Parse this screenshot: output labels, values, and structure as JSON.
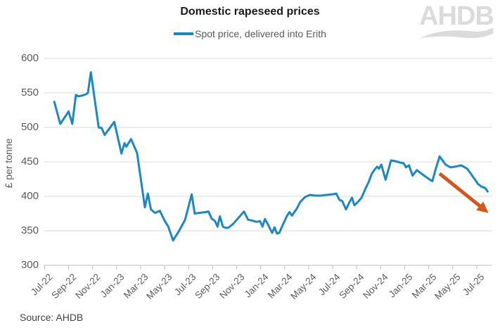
{
  "header": {
    "title": "Domestic rapeseed prices",
    "legend_label": "Spot price, delivered into Erith",
    "logo_text": "AHDB"
  },
  "footer": {
    "source": "Source: AHDB"
  },
  "colors": {
    "line": "#1B87C5",
    "arrow": "#D2571C",
    "gridline": "#D9D9D9",
    "axis": "#BFBFBF",
    "tick_text": "#595959",
    "logo": "#DBDBDB"
  },
  "chart_data": {
    "type": "line",
    "title": "Domestic rapeseed prices",
    "ylabel": "£ per tonne",
    "xlabel": "",
    "ylim": [
      300,
      600
    ],
    "y_ticks": [
      300,
      350,
      400,
      450,
      500,
      550,
      600
    ],
    "grid": "horizontal",
    "legend_position": "top-center",
    "x_axis": {
      "unit": "months after Jul-2022",
      "tick_months": [
        0,
        2,
        4,
        6,
        8,
        10,
        12,
        14,
        16,
        18,
        20,
        22,
        24,
        26,
        28,
        30,
        32,
        34,
        36
      ],
      "tick_labels": [
        "Jul-22",
        "Sep-22",
        "Nov-22",
        "Jan-23",
        "Mar-23",
        "May-23",
        "Jul-23",
        "Sep-23",
        "Nov-23",
        "Jan-24",
        "Mar-24",
        "May-24",
        "Jul-24",
        "Sep-24",
        "Nov-24",
        "Jan-25",
        "Mar-25",
        "May-25",
        "Jul-25"
      ]
    },
    "series": [
      {
        "name": "Spot price, delivered into Erith",
        "points": [
          [
            0.8,
            537
          ],
          [
            1.3,
            505
          ],
          [
            2.0,
            523
          ],
          [
            2.3,
            505
          ],
          [
            2.6,
            547
          ],
          [
            2.8,
            545
          ],
          [
            3.1,
            546
          ],
          [
            3.45,
            548
          ],
          [
            3.6,
            550
          ],
          [
            3.85,
            580
          ],
          [
            4.5,
            500
          ],
          [
            4.75,
            499
          ],
          [
            5.0,
            489
          ],
          [
            5.8,
            508
          ],
          [
            6.4,
            462
          ],
          [
            6.65,
            477
          ],
          [
            6.8,
            472
          ],
          [
            7.2,
            483
          ],
          [
            7.7,
            463
          ],
          [
            8.35,
            384
          ],
          [
            8.6,
            404
          ],
          [
            8.85,
            381
          ],
          [
            9.2,
            376
          ],
          [
            9.6,
            379
          ],
          [
            9.95,
            366
          ],
          [
            10.3,
            356
          ],
          [
            10.7,
            336
          ],
          [
            11.2,
            350
          ],
          [
            11.7,
            366
          ],
          [
            12.25,
            403
          ],
          [
            12.5,
            375
          ],
          [
            12.9,
            376
          ],
          [
            13.4,
            377
          ],
          [
            13.65,
            378
          ],
          [
            13.9,
            368
          ],
          [
            14.2,
            364
          ],
          [
            14.4,
            356
          ],
          [
            14.6,
            371
          ],
          [
            14.85,
            356
          ],
          [
            15.15,
            354
          ],
          [
            15.35,
            355
          ],
          [
            15.7,
            360
          ],
          [
            16.6,
            378
          ],
          [
            16.95,
            366
          ],
          [
            17.25,
            365
          ],
          [
            17.65,
            363
          ],
          [
            17.95,
            364
          ],
          [
            18.15,
            356
          ],
          [
            18.35,
            367
          ],
          [
            18.55,
            361
          ],
          [
            18.95,
            347
          ],
          [
            19.15,
            355
          ],
          [
            19.35,
            346
          ],
          [
            19.55,
            347
          ],
          [
            19.9,
            361
          ],
          [
            20.2,
            372
          ],
          [
            20.4,
            377
          ],
          [
            20.6,
            372
          ],
          [
            21.0,
            382
          ],
          [
            21.3,
            392
          ],
          [
            21.7,
            399
          ],
          [
            22.1,
            402
          ],
          [
            22.5,
            401
          ],
          [
            23.0,
            401
          ],
          [
            23.5,
            402
          ],
          [
            24.0,
            403
          ],
          [
            24.3,
            404
          ],
          [
            24.55,
            395
          ],
          [
            24.8,
            393
          ],
          [
            25.1,
            381
          ],
          [
            25.35,
            390
          ],
          [
            25.6,
            398
          ],
          [
            25.8,
            387
          ],
          [
            26.05,
            391
          ],
          [
            26.4,
            398
          ],
          [
            26.75,
            412
          ],
          [
            27.0,
            421
          ],
          [
            27.25,
            433
          ],
          [
            27.5,
            439
          ],
          [
            27.7,
            443
          ],
          [
            27.85,
            440
          ],
          [
            28.05,
            446
          ],
          [
            28.4,
            424
          ],
          [
            28.85,
            452
          ],
          [
            29.2,
            451
          ],
          [
            29.6,
            449
          ],
          [
            29.9,
            448
          ],
          [
            30.1,
            442
          ],
          [
            30.35,
            445
          ],
          [
            30.65,
            430
          ],
          [
            31.0,
            438
          ],
          [
            31.3,
            434
          ],
          [
            32.1,
            424
          ],
          [
            32.3,
            422
          ],
          [
            32.55,
            438
          ],
          [
            32.9,
            458
          ],
          [
            33.4,
            446
          ],
          [
            33.8,
            442
          ],
          [
            34.2,
            443
          ],
          [
            34.7,
            445
          ],
          [
            35.2,
            440
          ],
          [
            35.7,
            428
          ],
          [
            36.1,
            418
          ],
          [
            36.4,
            414
          ],
          [
            36.7,
            412
          ],
          [
            36.9,
            407
          ]
        ]
      }
    ],
    "annotation_arrow": {
      "from": [
        32.9,
        433
      ],
      "to": [
        36.75,
        379
      ]
    }
  }
}
